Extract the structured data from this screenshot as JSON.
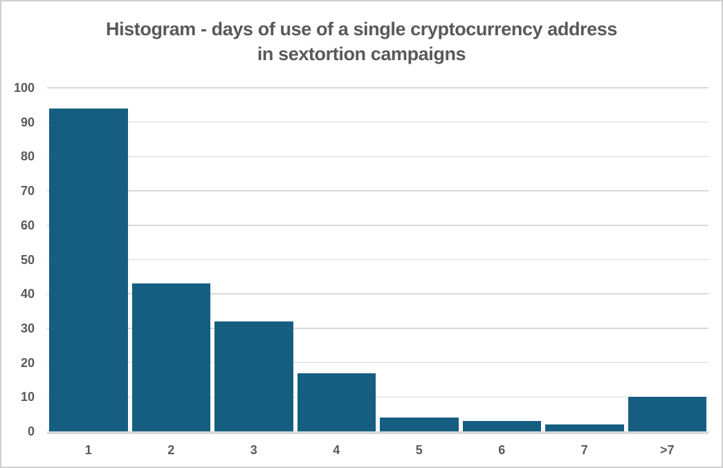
{
  "chart_data": {
    "type": "bar",
    "title_line1": "Histogram - days of use of a single cryptocurrency address",
    "title_line2": "in sextortion campaigns",
    "categories": [
      "1",
      "2",
      "3",
      "4",
      "5",
      "6",
      "7",
      ">7"
    ],
    "values": [
      94,
      43,
      32,
      17,
      4,
      3,
      2,
      10
    ],
    "xlabel": "",
    "ylabel": "",
    "ylim": [
      0,
      100
    ],
    "ytick_step": 10,
    "ytick_labels": [
      "0",
      "10",
      "20",
      "30",
      "40",
      "50",
      "60",
      "70",
      "80",
      "90",
      "100"
    ],
    "grid": true,
    "legend": "none",
    "colors": {
      "bar": "#155E82",
      "text": "#595959",
      "gridline": "#D9D9D9",
      "axis_line": "#D9D9D9",
      "border": "#CFCFCF",
      "background": "#FFFFFF"
    }
  }
}
